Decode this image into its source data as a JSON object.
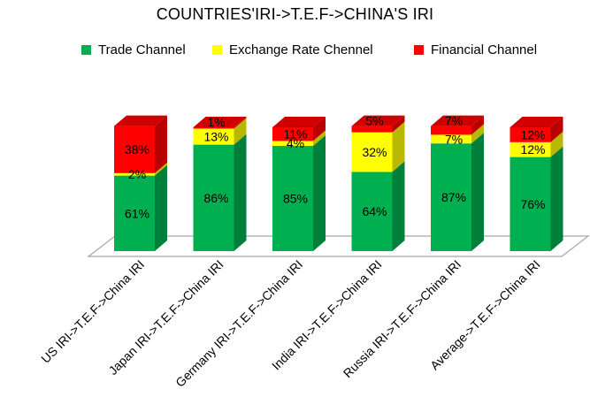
{
  "chart_data": {
    "type": "bar",
    "stacked": true,
    "percent_stacked": true,
    "three_d": true,
    "title": "COUNTRIES'IRI->T.E.F->CHINA'S IRI",
    "categories": [
      "US IRI->T.E.F->China IRI",
      "Japan IRI->T.E.F->China IRI",
      "Germany IRI->T.E.F->China IRI",
      "India IRI->T.E.F->China IRI",
      "Russia IRI->T.E.F->China IRI",
      "Average->T.E.F->China IRI"
    ],
    "series": [
      {
        "name": "Trade Channel",
        "color": "#00b050",
        "values": [
          61,
          86,
          85,
          64,
          87,
          76
        ],
        "labels": [
          "61%",
          "86%",
          "85%",
          "64%",
          "87%",
          "76%"
        ]
      },
      {
        "name": "Exchange Rate Chennel",
        "color": "#ffff00",
        "values": [
          2,
          13,
          4,
          32,
          7,
          12
        ],
        "labels": [
          "2%",
          "13%",
          "4%",
          "32%",
          "7%",
          "12%"
        ]
      },
      {
        "name": "Financial Channel",
        "color": "#ff0000",
        "values": [
          38,
          1,
          11,
          5,
          7,
          12
        ],
        "labels": [
          "38%",
          "1%",
          "11%",
          "5%",
          "7%",
          "12%"
        ]
      }
    ],
    "ylim": [
      0,
      100
    ],
    "gridlines": false,
    "legend_position": "top"
  }
}
